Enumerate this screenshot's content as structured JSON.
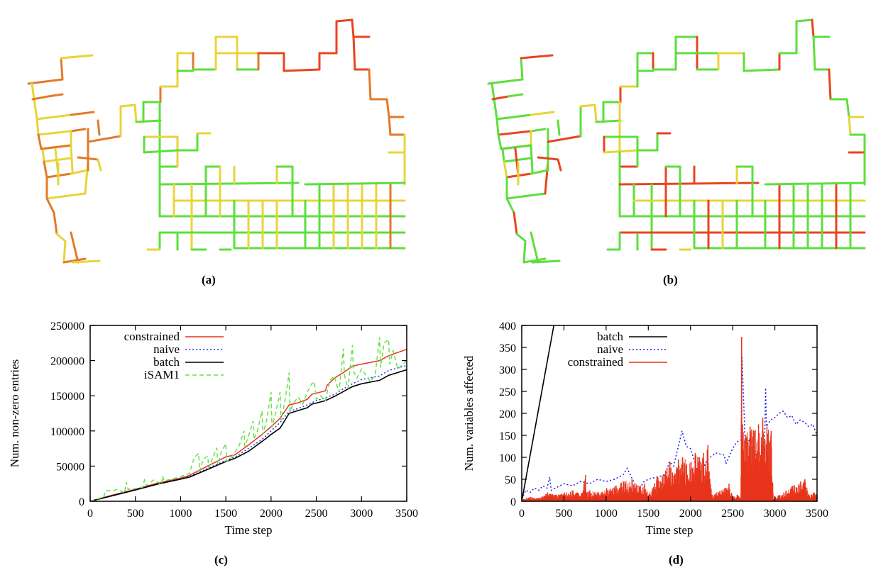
{
  "figure": {
    "captions": {
      "a": "(a)",
      "b": "(b)",
      "c": "(c)",
      "d": "(d)"
    },
    "map_legend_colors": {
      "low": "#5ddf3c",
      "mid": "#e8d43a",
      "high": "#e8451e",
      "orange": "#e27a2a"
    }
  },
  "maps": {
    "grid_unit": "grid cell",
    "a": {
      "description": "trajectory grid map colored by per-edge error (mostly orange/yellow left region, green lower-right, red top-right)",
      "region_colors": {
        "left_cluster": "orange",
        "upper_loop": "red",
        "lower_grid": "green"
      }
    },
    "b": {
      "description": "same trajectory grid map, almost entirely green with a few yellow/red segments",
      "region_colors": {
        "left_cluster": "green",
        "upper_loop": "green",
        "lower_grid": "green"
      }
    }
  },
  "chart_data": [
    {
      "id": "c",
      "type": "line",
      "title": "",
      "xlabel": "Time step",
      "ylabel": "Num. non-zero entries",
      "xlim": [
        0,
        3500
      ],
      "ylim": [
        0,
        250000
      ],
      "xticks": [
        0,
        500,
        1000,
        1500,
        2000,
        2500,
        3000,
        3500
      ],
      "yticks": [
        0,
        50000,
        100000,
        150000,
        200000,
        250000
      ],
      "grid": false,
      "legend_position": "top-left",
      "series": [
        {
          "name": "constrained",
          "color": "#e8341c",
          "style": "solid",
          "x": [
            0,
            250,
            500,
            750,
            1000,
            1100,
            1250,
            1500,
            1600,
            1750,
            1900,
            2000,
            2100,
            2200,
            2300,
            2400,
            2450,
            2600,
            2620,
            2700,
            2800,
            2900,
            3000,
            3200,
            3300,
            3500
          ],
          "y": [
            0,
            9000,
            17000,
            26000,
            33000,
            37000,
            47000,
            63000,
            66000,
            80000,
            95000,
            106000,
            118000,
            137000,
            140000,
            145000,
            152000,
            157000,
            165000,
            175000,
            183000,
            192000,
            195000,
            200000,
            207000,
            216000
          ]
        },
        {
          "name": "naive",
          "color": "#2233ee",
          "style": "dotted",
          "x": [
            0,
            250,
            500,
            750,
            1000,
            1100,
            1250,
            1500,
            1600,
            1750,
            1900,
            2000,
            2100,
            2200,
            2300,
            2400,
            2500,
            2600,
            2700,
            2800,
            2900,
            3000,
            3200,
            3300,
            3500
          ],
          "y": [
            0,
            8500,
            16500,
            25000,
            32000,
            35500,
            44000,
            58000,
            63000,
            75000,
            88000,
            100000,
            112000,
            128000,
            132000,
            137000,
            143000,
            147000,
            152000,
            160000,
            167000,
            173000,
            178000,
            186000,
            193000
          ]
        },
        {
          "name": "batch",
          "color": "#000000",
          "style": "solid",
          "x": [
            0,
            250,
            500,
            750,
            1000,
            1100,
            1250,
            1500,
            1600,
            1750,
            1900,
            2000,
            2100,
            2200,
            2300,
            2400,
            2450,
            2600,
            2700,
            2800,
            2900,
            3000,
            3200,
            3300,
            3500
          ],
          "y": [
            0,
            8000,
            16000,
            24500,
            31500,
            34500,
            42500,
            56500,
            61000,
            71000,
            85000,
            95000,
            104000,
            125000,
            129000,
            133000,
            138000,
            143000,
            149000,
            156000,
            163000,
            167000,
            172000,
            179000,
            187000
          ]
        },
        {
          "name": "iSAM1",
          "color": "#66e04a",
          "style": "dashed",
          "x": [
            0,
            150,
            170,
            250,
            300,
            380,
            400,
            420,
            500,
            580,
            600,
            620,
            700,
            790,
            800,
            820,
            1000,
            1100,
            1150,
            1200,
            1210,
            1250,
            1300,
            1310,
            1350,
            1400,
            1410,
            1450,
            1500,
            1510,
            1550,
            1600,
            1650,
            1700,
            1710,
            1750,
            1800,
            1810,
            1850,
            1900,
            1910,
            1950,
            2000,
            2010,
            2050,
            2100,
            2110,
            2150,
            2200,
            2210,
            2250,
            2300,
            2350,
            2400,
            2450,
            2480,
            2500,
            2550,
            2600,
            2650,
            2700,
            2750,
            2800,
            2810,
            2850,
            2900,
            2910,
            2950,
            3000,
            3100,
            3150,
            3200,
            3210,
            3250,
            3300,
            3310,
            3350,
            3400,
            3500
          ],
          "y": [
            0,
            6000,
            15000,
            15000,
            17000,
            12000,
            27000,
            17000,
            18000,
            20000,
            30000,
            22000,
            30000,
            24000,
            36000,
            29000,
            35000,
            40000,
            62000,
            68000,
            43000,
            60000,
            64000,
            48000,
            60000,
            76000,
            52000,
            70000,
            82000,
            57000,
            60000,
            70000,
            80000,
            100000,
            78000,
            92000,
            114000,
            88000,
            100000,
            128000,
            95000,
            115000,
            155000,
            105000,
            125000,
            155000,
            115000,
            140000,
            183000,
            128000,
            140000,
            148000,
            138000,
            155000,
            167000,
            170000,
            145000,
            150000,
            143000,
            172000,
            178000,
            155000,
            217000,
            180000,
            160000,
            222000,
            185000,
            175000,
            188000,
            170000,
            180000,
            233000,
            190000,
            225000,
            230000,
            195000,
            214000,
            188000,
            200000
          ]
        }
      ]
    },
    {
      "id": "d",
      "type": "line",
      "title": "",
      "xlabel": "Time step",
      "ylabel": "Num. variables affected",
      "xlim": [
        0,
        3500
      ],
      "ylim": [
        0,
        400
      ],
      "xticks": [
        0,
        500,
        1000,
        1500,
        2000,
        2500,
        3000,
        3500
      ],
      "yticks": [
        0,
        50,
        100,
        150,
        200,
        250,
        300,
        350,
        400
      ],
      "grid": false,
      "legend_position": "top-center",
      "series": [
        {
          "name": "batch",
          "color": "#000000",
          "style": "solid",
          "x": [
            0,
            380
          ],
          "y": [
            0,
            400
          ]
        },
        {
          "name": "naive",
          "color": "#1a1aee",
          "style": "dotted",
          "x": [
            0,
            50,
            100,
            150,
            200,
            250,
            300,
            330,
            350,
            400,
            500,
            600,
            700,
            800,
            900,
            1000,
            1100,
            1200,
            1250,
            1300,
            1350,
            1400,
            1450,
            1500,
            1600,
            1700,
            1750,
            1800,
            1850,
            1900,
            1950,
            2000,
            2050,
            2100,
            2150,
            2200,
            2300,
            2400,
            2420,
            2500,
            2550,
            2600,
            2610,
            2650,
            2700,
            2750,
            2800,
            2850,
            2880,
            2890,
            2900,
            2950,
            3000,
            3050,
            3100,
            3150,
            3200,
            3250,
            3300,
            3350,
            3400,
            3450,
            3500
          ],
          "y": [
            5,
            25,
            20,
            30,
            25,
            35,
            30,
            55,
            25,
            30,
            40,
            35,
            45,
            40,
            50,
            45,
            50,
            60,
            75,
            55,
            35,
            30,
            45,
            50,
            55,
            60,
            90,
            80,
            120,
            160,
            125,
            120,
            90,
            60,
            75,
            95,
            110,
            105,
            85,
            120,
            135,
            140,
            330,
            125,
            140,
            130,
            85,
            100,
            150,
            258,
            170,
            185,
            190,
            200,
            205,
            190,
            195,
            175,
            185,
            180,
            170,
            175,
            150
          ]
        },
        {
          "name": "constrained",
          "color": "#e8341c",
          "style": "solid-fill",
          "x": [
            0,
            100,
            200,
            300,
            400,
            500,
            600,
            700,
            750,
            760,
            800,
            900,
            1000,
            1100,
            1200,
            1300,
            1400,
            1450,
            1500,
            1600,
            1700,
            1750,
            1800,
            1850,
            1900,
            2000,
            2050,
            2100,
            2150,
            2200,
            2250,
            2300,
            2400,
            2450,
            2500,
            2550,
            2590,
            2600,
            2610,
            2650,
            2700,
            2750,
            2800,
            2850,
            2900,
            2950,
            2980,
            3000,
            3100,
            3200,
            3300,
            3350,
            3400,
            3450,
            3500
          ],
          "y": [
            5,
            10,
            8,
            20,
            15,
            20,
            25,
            18,
            60,
            20,
            25,
            20,
            30,
            35,
            45,
            50,
            35,
            40,
            15,
            55,
            70,
            90,
            60,
            95,
            100,
            90,
            110,
            100,
            110,
            128,
            15,
            20,
            30,
            40,
            10,
            15,
            10,
            374,
            175,
            150,
            170,
            160,
            175,
            190,
            170,
            160,
            5,
            10,
            20,
            35,
            45,
            50,
            15,
            20,
            25
          ]
        }
      ]
    }
  ]
}
